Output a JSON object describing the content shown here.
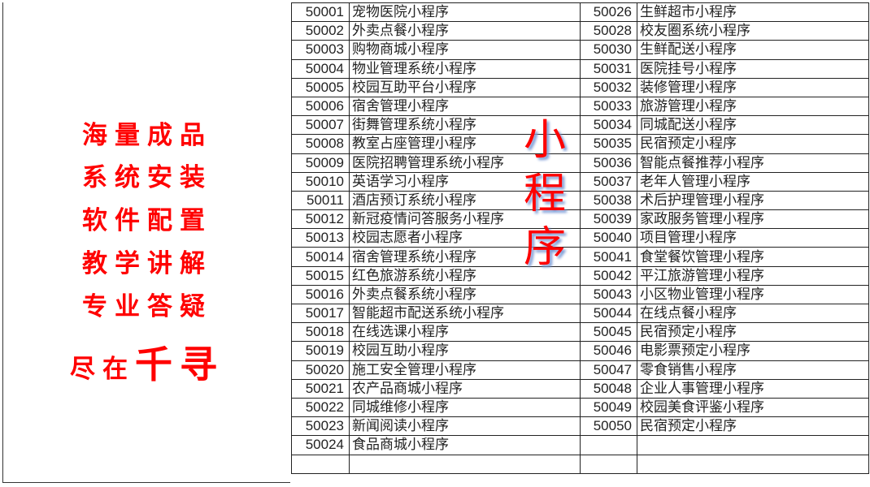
{
  "slogans": [
    "海量成品",
    "系统安装",
    "软件配置",
    "教学讲解",
    "专业答疑"
  ],
  "slogan_last": {
    "prefix": "尽在",
    "emphasis": "千寻"
  },
  "overlay_title": [
    "小",
    "程",
    "序"
  ],
  "accent_color": "#ff0000",
  "table_left": [
    {
      "id": "50001",
      "name": "宠物医院小程序"
    },
    {
      "id": "50002",
      "name": "外卖点餐小程序"
    },
    {
      "id": "50003",
      "name": "购物商城小程序"
    },
    {
      "id": "50004",
      "name": "物业管理系统小程序"
    },
    {
      "id": "50005",
      "name": "校园互助平台小程序"
    },
    {
      "id": "50006",
      "name": "宿舍管理小程序"
    },
    {
      "id": "50007",
      "name": "街舞管理系统小程序"
    },
    {
      "id": "50008",
      "name": "教室占座管理小程序"
    },
    {
      "id": "50009",
      "name": "医院招聘管理系统小程序"
    },
    {
      "id": "50010",
      "name": "英语学习小程序"
    },
    {
      "id": "50011",
      "name": "酒店预订系统小程序"
    },
    {
      "id": "50012",
      "name": "新冠疫情问答服务小程序"
    },
    {
      "id": "50013",
      "name": "校园志愿者小程序"
    },
    {
      "id": "50014",
      "name": "宿舍管理系统小程序"
    },
    {
      "id": "50015",
      "name": "红色旅游系统小程序"
    },
    {
      "id": "50016",
      "name": "外卖点餐系统小程序"
    },
    {
      "id": "50017",
      "name": "智能超市配送系统小程序"
    },
    {
      "id": "50018",
      "name": "在线选课小程序"
    },
    {
      "id": "50019",
      "name": "校园互助小程序"
    },
    {
      "id": "50020",
      "name": "施工安全管理小程序"
    },
    {
      "id": "50021",
      "name": "农产品商城小程序"
    },
    {
      "id": "50022",
      "name": "同城维修小程序"
    },
    {
      "id": "50023",
      "name": "新闻阅读小程序"
    },
    {
      "id": "50024",
      "name": "食品商城小程序"
    },
    {
      "id": "",
      "name": ""
    }
  ],
  "table_right": [
    {
      "id": "50026",
      "name": "生鲜超市小程序"
    },
    {
      "id": "50028",
      "name": "校友圈系统小程序"
    },
    {
      "id": "50030",
      "name": "生鲜配送小程序"
    },
    {
      "id": "50031",
      "name": "医院挂号小程序"
    },
    {
      "id": "50032",
      "name": "装修管理小程序"
    },
    {
      "id": "50033",
      "name": "旅游管理小程序"
    },
    {
      "id": "50034",
      "name": "同城配送小程序"
    },
    {
      "id": "50035",
      "name": "民宿预定小程序"
    },
    {
      "id": "50036",
      "name": "智能点餐推荐小程序"
    },
    {
      "id": "50037",
      "name": "老年人管理小程序"
    },
    {
      "id": "50038",
      "name": "术后护理管理小程序"
    },
    {
      "id": "50039",
      "name": "家政服务管理小程序"
    },
    {
      "id": "50040",
      "name": "项目管理小程序"
    },
    {
      "id": "50041",
      "name": "食堂餐饮管理小程序"
    },
    {
      "id": "50042",
      "name": "平江旅游管理小程序"
    },
    {
      "id": "50043",
      "name": "小区物业管理小程序"
    },
    {
      "id": "50044",
      "name": "在线点餐小程序"
    },
    {
      "id": "50045",
      "name": "民宿预定小程序"
    },
    {
      "id": "50046",
      "name": "电影票预定小程序"
    },
    {
      "id": "50047",
      "name": "零食销售小程序"
    },
    {
      "id": "50048",
      "name": "企业人事管理小程序"
    },
    {
      "id": "50049",
      "name": "校园美食评鉴小程序"
    },
    {
      "id": "50050",
      "name": "民宿预定小程序"
    },
    {
      "id": "",
      "name": ""
    },
    {
      "id": "",
      "name": ""
    }
  ]
}
